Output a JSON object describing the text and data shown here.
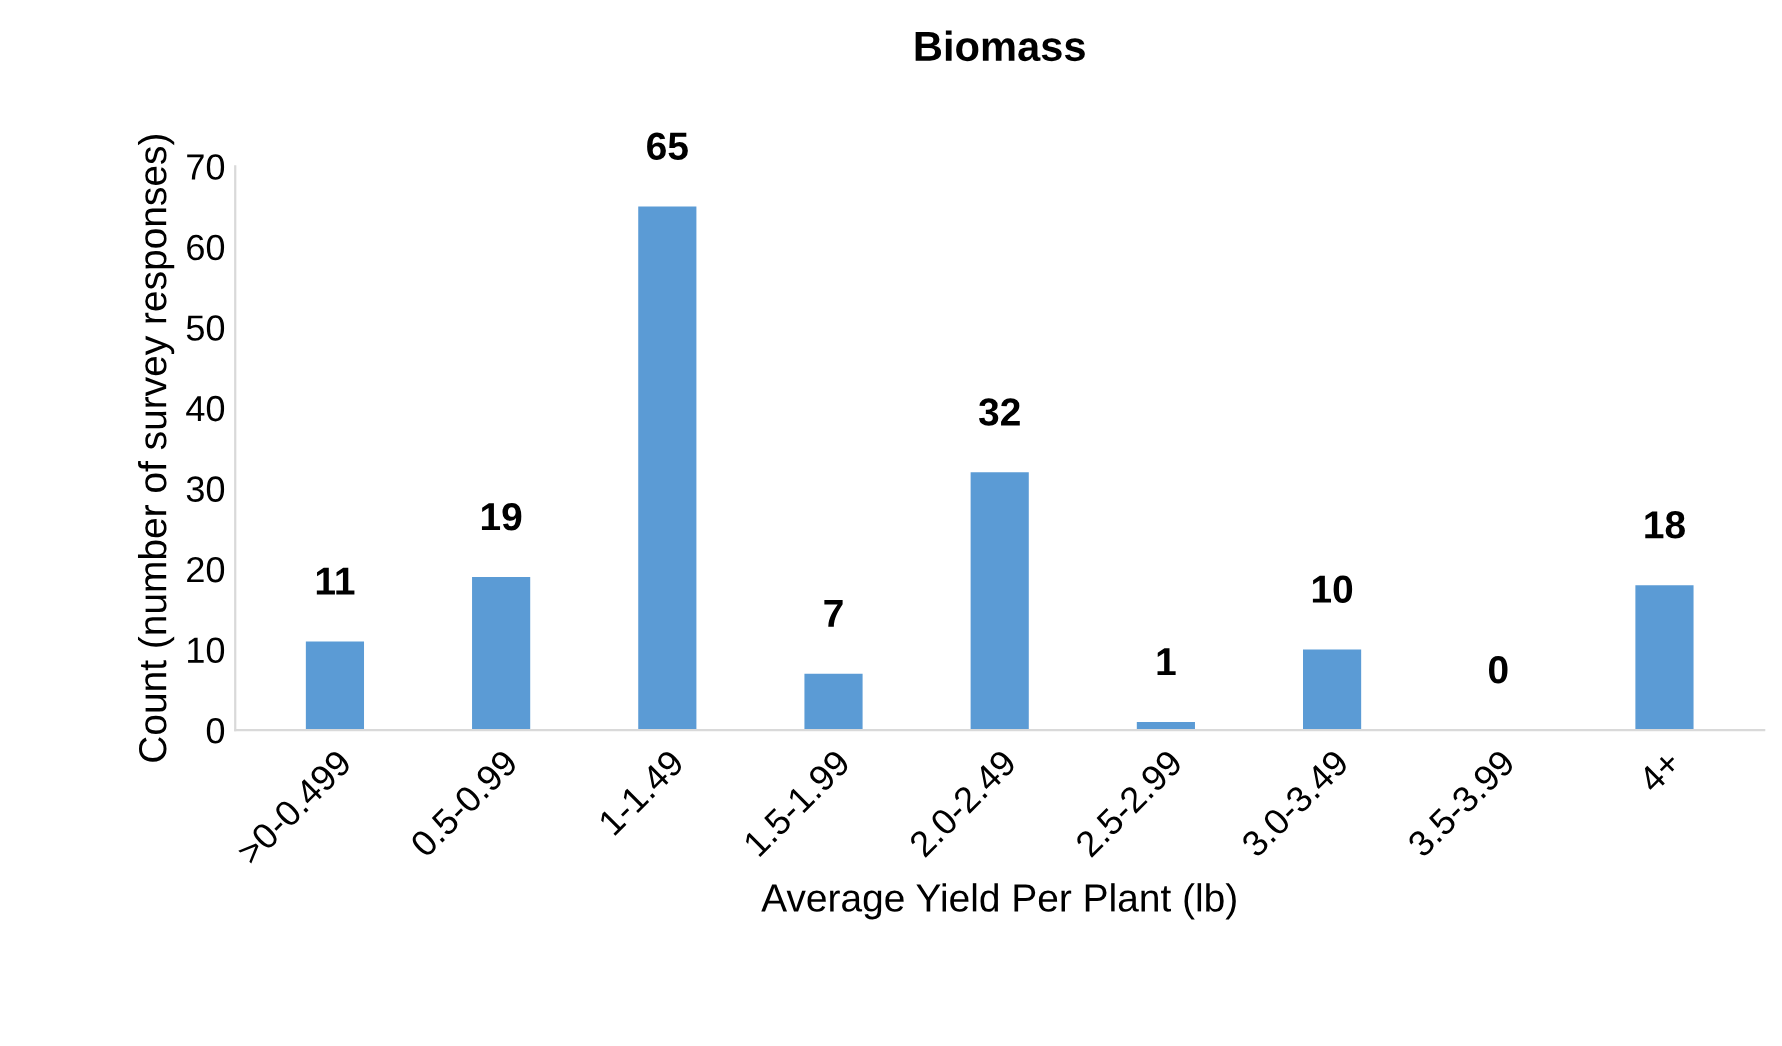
{
  "chart_data": {
    "type": "bar",
    "title": "Biomass",
    "xlabel": "Average Yield Per Plant (lb)",
    "ylabel": "Count (number of survey responses)",
    "categories": [
      ">0-0.499",
      "0.5-0.99",
      "1-1.49",
      "1.5-1.99",
      "2.0-2.49",
      "2.5-2.99",
      "3.0-3.49",
      "3.5-3.99",
      "4+"
    ],
    "values": [
      11,
      19,
      65,
      7,
      32,
      1,
      10,
      0,
      18
    ],
    "color": "#5b9bd5",
    "ylim": [
      0,
      70
    ],
    "yticks": [
      0,
      10,
      20,
      30,
      40,
      50,
      60,
      70
    ],
    "grid": false,
    "data_labels": true
  }
}
